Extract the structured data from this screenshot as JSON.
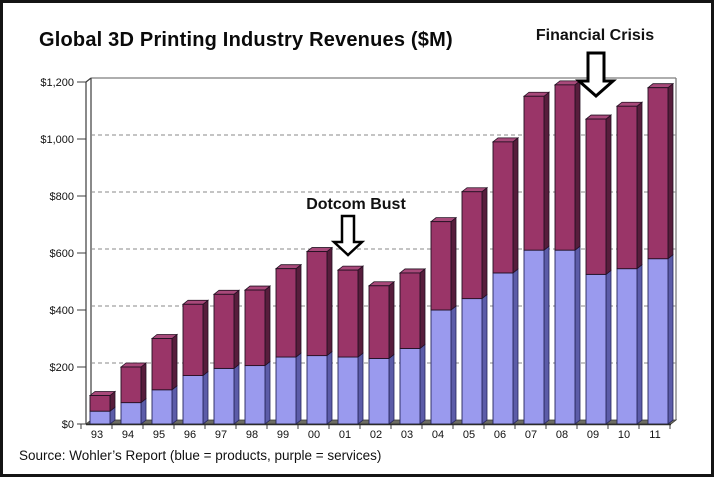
{
  "title": "Global 3D Printing Industry Revenues ($M)",
  "source_note": "Source: Wohler’s Report (blue = products, purple = services)",
  "annotations": [
    {
      "label": "Dotcom Bust",
      "points_to_year": "01"
    },
    {
      "label": "Financial Crisis",
      "points_to_year": "09"
    }
  ],
  "colors": {
    "products_front": "#9a9aee",
    "products_side": "#5c5ca8",
    "products_outline": "#26265c",
    "services_front": "#9a3568",
    "services_side": "#571d3c",
    "services_top": "#a8497a",
    "services_outline": "#241022",
    "floor": "#6d6d63",
    "gridline": "#8a8a8a",
    "axis": "#3c3c3c",
    "plot_border": "#7d7d7d",
    "arrow_fill": "#ffffff",
    "arrow_stroke": "#000000"
  },
  "chart_data": {
    "type": "bar",
    "stacked": true,
    "title": "Global 3D Printing Industry Revenues ($M)",
    "categories": [
      "93",
      "94",
      "95",
      "96",
      "97",
      "98",
      "99",
      "00",
      "01",
      "02",
      "03",
      "04",
      "05",
      "06",
      "07",
      "08",
      "09",
      "10",
      "11"
    ],
    "series": [
      {
        "name": "products",
        "color_key": "products_front",
        "values": [
          45,
          75,
          120,
          170,
          195,
          205,
          235,
          240,
          235,
          230,
          265,
          400,
          440,
          530,
          610,
          610,
          525,
          545,
          580
        ]
      },
      {
        "name": "services",
        "color_key": "services_front",
        "values": [
          55,
          125,
          180,
          250,
          260,
          265,
          310,
          365,
          305,
          255,
          265,
          310,
          375,
          460,
          540,
          580,
          545,
          570,
          600
        ]
      }
    ],
    "totals": [
      100,
      200,
      300,
      420,
      455,
      470,
      545,
      605,
      540,
      485,
      530,
      710,
      815,
      990,
      1150,
      1190,
      1070,
      1115,
      1180
    ],
    "ylim": [
      0,
      1200
    ],
    "ytick_step": 200,
    "ytick_labels": [
      "$0",
      "$200",
      "$400",
      "$600",
      "$800",
      "$1,000",
      "$1,200"
    ],
    "grid": "horizontal-dashed",
    "legend": "none"
  }
}
